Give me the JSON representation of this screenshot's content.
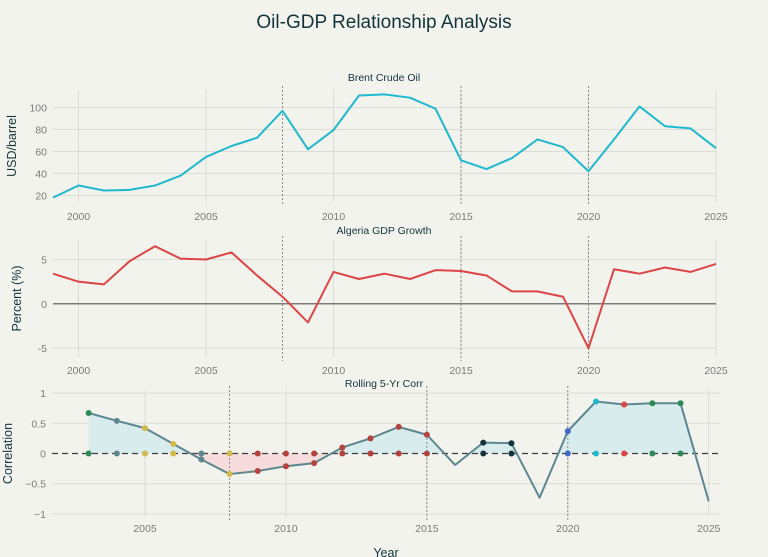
{
  "title": "Oil-GDP Relationship Analysis",
  "colors": {
    "background": "#f3f3ee",
    "grid": "#dcdcd6",
    "zero_line": "#555555",
    "oil_line": "#1fb8cd",
    "gdp_line": "#db4545",
    "corr_line": "#5d878f",
    "pos_fill": "#d8ecee",
    "neg_fill": "#f6dcdc",
    "event_line": "#888888"
  },
  "chart_data": [
    {
      "type": "line",
      "title": "Brent Crude Oil",
      "xlabel": "",
      "ylabel": "USD/barrel",
      "xlim": [
        1999,
        2025
      ],
      "ylim": [
        14,
        116
      ],
      "xticks": [
        2000,
        2005,
        2010,
        2015,
        2020,
        2025
      ],
      "yticks": [
        20,
        40,
        60,
        80,
        100
      ],
      "grid": true,
      "event_lines": [
        2008,
        2015,
        2020
      ],
      "series": [
        {
          "name": "Brent Crude Oil",
          "color": "#1fb8cd",
          "x": [
            1999,
            2000,
            2001,
            2002,
            2003,
            2004,
            2005,
            2006,
            2007,
            2008,
            2009,
            2010,
            2011,
            2012,
            2013,
            2014,
            2015,
            2016,
            2017,
            2018,
            2019,
            2020,
            2021,
            2022,
            2023,
            2024,
            2025
          ],
          "y": [
            18,
            29,
            24.5,
            25,
            29,
            38,
            55,
            65,
            72.5,
            97,
            62,
            79.5,
            111,
            112,
            109,
            99,
            52,
            44,
            54,
            71,
            64,
            42,
            71,
            101,
            83,
            81,
            63
          ]
        }
      ]
    },
    {
      "type": "line",
      "title": "Algeria GDP Growth",
      "xlabel": "",
      "ylabel": "Percent (%)",
      "xlim": [
        1999,
        2025
      ],
      "ylim": [
        -6,
        7.2
      ],
      "xticks": [
        2000,
        2005,
        2010,
        2015,
        2020,
        2025
      ],
      "yticks": [
        -5,
        0,
        5
      ],
      "grid": true,
      "zero_line": true,
      "event_lines": [
        2008,
        2015,
        2020
      ],
      "series": [
        {
          "name": "Algeria GDP Growth",
          "color": "#db4545",
          "x": [
            1999,
            2000,
            2001,
            2002,
            2003,
            2004,
            2005,
            2006,
            2007,
            2008,
            2009,
            2010,
            2011,
            2012,
            2013,
            2014,
            2015,
            2016,
            2017,
            2018,
            2019,
            2020,
            2021,
            2022,
            2023,
            2024,
            2025
          ],
          "y": [
            3.4,
            2.5,
            2.2,
            4.8,
            6.5,
            5.1,
            5.0,
            5.8,
            3.2,
            0.8,
            -2.1,
            3.6,
            2.8,
            3.4,
            2.8,
            3.8,
            3.7,
            3.2,
            1.4,
            1.4,
            0.8,
            -5.0,
            3.9,
            3.4,
            4.1,
            3.6,
            4.5
          ]
        }
      ]
    },
    {
      "type": "line",
      "title": "Rolling 5-Yr Corr",
      "xlabel": "Year",
      "ylabel": "Correlation",
      "xlim": [
        2001.7,
        2025.4
      ],
      "ylim": [
        -1.05,
        1.05
      ],
      "xticks": [
        2005,
        2010,
        2015,
        2020,
        2025
      ],
      "yticks": [
        -1,
        -0.5,
        0,
        0.5,
        1
      ],
      "ytick_labels": [
        "−1",
        "−0.5",
        "0",
        "0.5",
        "1"
      ],
      "grid": true,
      "zero_line": "dashed",
      "event_lines": [
        2008,
        2015,
        2020
      ],
      "series": [
        {
          "name": "Rolling 5-Yr Corr",
          "color": "#5d878f",
          "x": [
            2003,
            2004,
            2005,
            2006,
            2007,
            2008,
            2009,
            2010,
            2011,
            2012,
            2013,
            2014,
            2015,
            2016,
            2017,
            2018,
            2019,
            2020,
            2021,
            2022,
            2023,
            2024,
            2025
          ],
          "y": [
            0.67,
            0.54,
            0.42,
            0.16,
            -0.1,
            -0.34,
            -0.29,
            -0.21,
            -0.16,
            0.1,
            0.25,
            0.44,
            0.31,
            -0.19,
            0.18,
            0.17,
            -0.73,
            0.37,
            0.86,
            0.81,
            0.83,
            0.83,
            -0.79
          ],
          "markers": [
            {
              "x": 2003,
              "color": "#2e8b57"
            },
            {
              "x": 2004,
              "color": "#5d878f"
            },
            {
              "x": 2005,
              "color": "#d2ba4c"
            },
            {
              "x": 2006,
              "color": "#d2ba4c"
            },
            {
              "x": 2007,
              "color": "#5d878f"
            },
            {
              "x": 2008,
              "color": "#d2ba4c"
            },
            {
              "x": 2009,
              "color": "#b4413c"
            },
            {
              "x": 2010,
              "color": "#b4413c"
            },
            {
              "x": 2011,
              "color": "#b4413c"
            },
            {
              "x": 2012,
              "color": "#b4413c"
            },
            {
              "x": 2013,
              "color": "#b4413c"
            },
            {
              "x": 2014,
              "color": "#b4413c"
            },
            {
              "x": 2015,
              "color": "#b4413c"
            },
            {
              "x": 2017,
              "color": "#13343b"
            },
            {
              "x": 2018,
              "color": "#13343b"
            },
            {
              "x": 2020,
              "color": "#4169c8"
            },
            {
              "x": 2021,
              "color": "#1fb8cd"
            },
            {
              "x": 2022,
              "color": "#db4545"
            },
            {
              "x": 2023,
              "color": "#2e8b57"
            },
            {
              "x": 2024,
              "color": "#2e8b57"
            }
          ]
        }
      ]
    }
  ]
}
